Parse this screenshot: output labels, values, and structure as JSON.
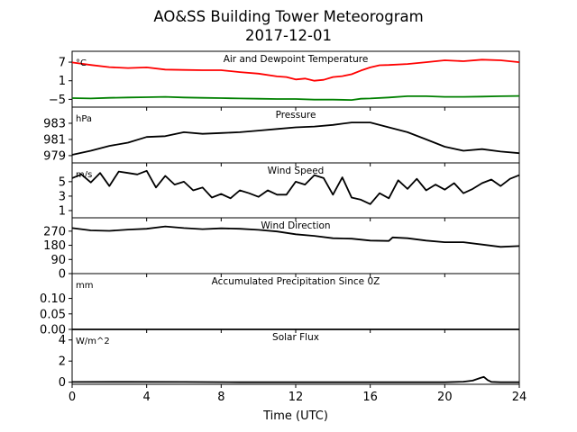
{
  "figure": {
    "title_line1": "AO&SS Building Tower Meteorogram",
    "title_line2": "2017-12-01",
    "xlabel": "Time (UTC)"
  },
  "chart_data": [
    {
      "type": "line",
      "title": "Air and Dewpoint Temperature",
      "unit": "°C",
      "ylim": [
        -7.5,
        10.5
      ],
      "yticks": [
        7,
        1,
        -5
      ],
      "ytick_labels": [
        "7",
        "1",
        "−5"
      ],
      "xlim": [
        0,
        24
      ],
      "series": [
        {
          "color": "#ff0000",
          "x": [
            0,
            1,
            2,
            3,
            4,
            5,
            6,
            7,
            8,
            9,
            10,
            11,
            11.5,
            12,
            12.5,
            13,
            13.5,
            14,
            14.5,
            15,
            15.5,
            16,
            16.5,
            17,
            18,
            19,
            20,
            21,
            22,
            23,
            24
          ],
          "values": [
            6.9,
            6.1,
            5.4,
            5.1,
            5.3,
            4.6,
            4.5,
            4.4,
            4.4,
            3.8,
            3.3,
            2.4,
            2.2,
            1.4,
            1.7,
            1.0,
            1.3,
            2.2,
            2.5,
            3.1,
            4.3,
            5.3,
            6.0,
            6.1,
            6.4,
            7.0,
            7.6,
            7.3,
            7.8,
            7.6,
            7.0
          ]
        },
        {
          "color": "#008000",
          "x": [
            0,
            1,
            2,
            3,
            4,
            5,
            6,
            7,
            8,
            9,
            10,
            11,
            12,
            13,
            14,
            15,
            15.5,
            16,
            17,
            18,
            19,
            20,
            21,
            22,
            23,
            24
          ],
          "values": [
            -4.6,
            -4.7,
            -4.5,
            -4.4,
            -4.3,
            -4.2,
            -4.4,
            -4.5,
            -4.6,
            -4.7,
            -4.8,
            -4.9,
            -4.9,
            -5.1,
            -5.1,
            -5.2,
            -4.8,
            -4.7,
            -4.4,
            -4.0,
            -4.0,
            -4.2,
            -4.2,
            -4.1,
            -4.0,
            -3.9
          ]
        }
      ]
    },
    {
      "type": "line",
      "title": "Pressure",
      "unit": "hPa",
      "ylim": [
        978.1,
        985.0
      ],
      "yticks": [
        983,
        981,
        979
      ],
      "ytick_labels": [
        "983",
        "981",
        "979"
      ],
      "xlim": [
        0,
        24
      ],
      "series": [
        {
          "color": "#000000",
          "x": [
            0,
            1,
            2,
            3,
            4,
            5,
            6,
            7,
            8,
            9,
            10,
            11,
            12,
            13,
            14,
            15,
            16,
            17,
            18,
            19,
            20,
            21,
            22,
            23,
            24
          ],
          "values": [
            979.1,
            979.6,
            980.2,
            980.6,
            981.3,
            981.4,
            981.9,
            981.7,
            981.8,
            981.9,
            982.1,
            982.3,
            982.5,
            982.6,
            982.8,
            983.1,
            983.1,
            982.5,
            981.9,
            981.0,
            980.1,
            979.6,
            979.8,
            979.5,
            979.3
          ]
        }
      ]
    },
    {
      "type": "line",
      "title": "Wind Speed",
      "unit": "m/s",
      "ylim": [
        0,
        7.6
      ],
      "yticks": [
        5,
        3,
        1
      ],
      "ytick_labels": [
        "5",
        "3",
        "1"
      ],
      "xlim": [
        0,
        24
      ],
      "series": [
        {
          "color": "#000000",
          "x": [
            0,
            0.5,
            1,
            1.5,
            2,
            2.5,
            3,
            3.5,
            4,
            4.5,
            5,
            5.5,
            6,
            6.5,
            7,
            7.5,
            8,
            8.5,
            9,
            9.5,
            10,
            10.5,
            11,
            11.5,
            12,
            12.5,
            13,
            13.5,
            14,
            14.5,
            15,
            15.5,
            16,
            16.5,
            17,
            17.5,
            18,
            18.5,
            19,
            19.5,
            20,
            20.5,
            21,
            21.5,
            22,
            22.5,
            23,
            23.5,
            24
          ],
          "values": [
            5.5,
            6.0,
            4.9,
            6.2,
            4.4,
            6.4,
            6.2,
            6.0,
            6.5,
            4.2,
            5.8,
            4.6,
            5.0,
            3.8,
            4.2,
            2.8,
            3.3,
            2.7,
            3.8,
            3.4,
            2.9,
            3.8,
            3.2,
            3.2,
            5.0,
            4.6,
            5.9,
            5.5,
            3.2,
            5.6,
            2.8,
            2.5,
            1.9,
            3.4,
            2.7,
            5.2,
            4.0,
            5.4,
            3.8,
            4.6,
            3.9,
            4.8,
            3.4,
            4.0,
            4.8,
            5.3,
            4.4,
            5.4,
            5.9
          ]
        }
      ]
    },
    {
      "type": "line",
      "title": "Wind Direction",
      "unit": "",
      "ylim": [
        0,
        355
      ],
      "yticks": [
        270,
        180,
        90,
        0
      ],
      "ytick_labels": [
        "270",
        "180",
        "90",
        "0"
      ],
      "xlim": [
        0,
        24
      ],
      "series": [
        {
          "color": "#000000",
          "x": [
            0,
            1,
            2,
            3,
            4,
            5,
            6,
            7,
            8,
            9,
            10,
            11,
            12,
            13,
            14,
            15,
            16,
            17,
            17.2,
            18,
            19,
            20,
            21,
            22,
            23,
            24
          ],
          "values": [
            290,
            275,
            272,
            280,
            285,
            300,
            290,
            283,
            288,
            285,
            278,
            268,
            250,
            240,
            225,
            222,
            210,
            208,
            230,
            225,
            210,
            200,
            200,
            185,
            170,
            175
          ]
        }
      ]
    },
    {
      "type": "line",
      "title": "Accumulated Precipitation Since 0Z",
      "unit": "mm",
      "ylim": [
        0,
        0.18
      ],
      "yticks": [
        0.1,
        0.05,
        0.0
      ],
      "ytick_labels": [
        "0.10",
        "0.05",
        "0.00"
      ],
      "xlim": [
        0,
        24
      ],
      "series": [
        {
          "color": "#000000",
          "x": [
            0,
            24
          ],
          "values": [
            0,
            0
          ]
        }
      ]
    },
    {
      "type": "line",
      "title": "Solar Flux",
      "unit": "W/m^2",
      "ylim": [
        -0.2,
        5.0
      ],
      "yticks": [
        4,
        2,
        0
      ],
      "ytick_labels": [
        "4",
        "2",
        "0"
      ],
      "xlim": [
        0,
        24
      ],
      "xticks": [
        0,
        4,
        8,
        12,
        16,
        20,
        24
      ],
      "xtick_labels": [
        "0",
        "4",
        "8",
        "12",
        "16",
        "20",
        "24"
      ],
      "series": [
        {
          "color": "#000000",
          "x": [
            0,
            3,
            6,
            9,
            12,
            15,
            18,
            20,
            21,
            21.5,
            21.9,
            22.1,
            22.3,
            22.5,
            23,
            24
          ],
          "values": [
            0.02,
            0.03,
            0.02,
            0.0,
            0.0,
            0.0,
            0.0,
            0.0,
            0.05,
            0.15,
            0.4,
            0.5,
            0.2,
            0.03,
            0.0,
            0.0
          ]
        }
      ]
    }
  ]
}
